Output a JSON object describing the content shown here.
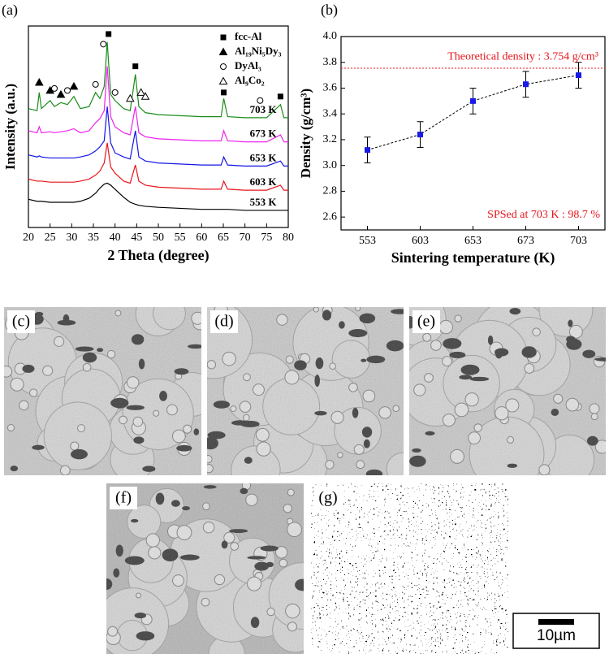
{
  "chart_data": [
    {
      "type": "line",
      "panel": "(a)",
      "xlabel": "2 Theta (degree)",
      "ylabel": "Intensity (a.u.)",
      "x": [
        20,
        22,
        22.5,
        23,
        25,
        26,
        27.5,
        29,
        30.5,
        32,
        34,
        35.5,
        36.5,
        37.5,
        38.2,
        39,
        40,
        42,
        43.5,
        44.7,
        45.5,
        47,
        50,
        55,
        60,
        64.5,
        65.1,
        66,
        70,
        73.5,
        75,
        78.2,
        79,
        80
      ],
      "xlim": [
        20,
        80
      ],
      "xticks": [
        20,
        25,
        30,
        35,
        40,
        45,
        50,
        55,
        60,
        65,
        70,
        75,
        80
      ],
      "ylim": [
        0,
        100
      ],
      "series": [
        {
          "name": "553 K",
          "color": "#000000",
          "values": [
            14,
            13,
            13,
            13,
            12.5,
            12.5,
            12.5,
            12.5,
            12.5,
            13,
            14.5,
            17,
            19.5,
            21.5,
            22,
            21,
            19,
            15,
            12.5,
            11.5,
            11,
            10.5,
            10,
            9.5,
            9,
            9,
            9,
            9,
            8.5,
            8.5,
            8.5,
            8.5,
            8.5,
            8.5
          ]
        },
        {
          "name": "603 K",
          "color": "#e8141b",
          "values": [
            24,
            23,
            23,
            23,
            22.5,
            22.5,
            22.5,
            22.5,
            22.5,
            23,
            24,
            26,
            28,
            32,
            42,
            30,
            27,
            23,
            22,
            31,
            23,
            21,
            20,
            19.5,
            19,
            19,
            23,
            19,
            18.5,
            18.5,
            18.5,
            21,
            18.5,
            18.5
          ]
        },
        {
          "name": "653 K",
          "color": "#1414e6",
          "values": [
            36,
            35,
            35.5,
            35,
            34.5,
            34.5,
            34.5,
            34.5,
            34.5,
            35,
            36,
            38,
            40,
            43,
            60,
            42,
            37,
            35,
            34,
            48,
            35,
            33,
            32,
            31.5,
            31,
            31,
            35,
            31,
            30.5,
            30.5,
            30.5,
            33,
            30.5,
            30.5
          ]
        },
        {
          "name": "673 K",
          "color": "#ee22ee",
          "values": [
            48,
            47,
            50,
            47,
            47.5,
            47,
            47.5,
            48,
            49,
            47,
            48,
            52,
            54,
            58,
            80,
            55,
            50,
            47,
            46,
            60,
            47,
            45,
            44,
            43.5,
            43,
            43,
            48,
            43,
            42.5,
            42.5,
            42.5,
            46,
            42.5,
            42.5
          ]
        },
        {
          "name": "703 K",
          "color": "#1a8c1a",
          "values": [
            59,
            58,
            67,
            59,
            63,
            60,
            62,
            61,
            65,
            59,
            60,
            67,
            64,
            70,
            92,
            66,
            63,
            59,
            58,
            76,
            60,
            57,
            56,
            55.5,
            55,
            55,
            64,
            55,
            54.5,
            54.5,
            54.5,
            61,
            54.5,
            54.5
          ]
        }
      ],
      "peak_markers": [
        {
          "name": "fcc-Al",
          "marker": "square",
          "points": [
            [
              38.5,
              96
            ],
            [
              44.7,
              80
            ],
            [
              65.1,
              67
            ],
            [
              78.2,
              65
            ]
          ]
        },
        {
          "name": "Al₁₉Ni₅Dy₃",
          "marker": "triangle",
          "points": [
            [
              22.5,
              72
            ],
            [
              25,
              68
            ],
            [
              27.5,
              66
            ],
            [
              30.5,
              70
            ]
          ]
        },
        {
          "name": "DyAl₃",
          "marker": "circle",
          "points": [
            [
              26,
              69
            ],
            [
              29,
              68
            ],
            [
              35.5,
              71
            ],
            [
              37.3,
              91
            ],
            [
              40,
              67
            ],
            [
              73.5,
              63
            ]
          ]
        },
        {
          "name": "Al₉Co₂",
          "marker": "open-triangle",
          "points": [
            [
              43.5,
              64
            ],
            [
              46,
              67
            ],
            [
              47,
              65
            ]
          ]
        }
      ]
    },
    {
      "type": "errorline",
      "panel": "(b)",
      "xlabel": "Sintering temperature (K)",
      "ylabel": "Density (g/cm³)",
      "categories": [
        "553",
        "603",
        "653",
        "673",
        "703"
      ],
      "values": [
        3.12,
        3.24,
        3.5,
        3.63,
        3.7
      ],
      "errors": [
        0.1,
        0.1,
        0.1,
        0.1,
        0.1
      ],
      "color": "#1a1ae6",
      "ylim": [
        2.5,
        4.0
      ],
      "yticks": [
        2.6,
        2.8,
        {
          "value": 3.0,
          "label": "3.0"
        },
        3.2,
        3.4,
        3.6,
        3.8,
        {
          "value": 4.0,
          "label": "4.0"
        }
      ],
      "reference": {
        "value": 3.754,
        "label": "Theoretical density : 3.754 g/cm³",
        "color": "#e8141b"
      },
      "annotation": "SPSed at 703 K : 98.7 %"
    }
  ],
  "images": [
    {
      "label": "(c)"
    },
    {
      "label": "(d)"
    },
    {
      "label": "(e)"
    },
    {
      "label": "(f)"
    },
    {
      "label": "(g)"
    }
  ],
  "scale_bar": "10µm"
}
